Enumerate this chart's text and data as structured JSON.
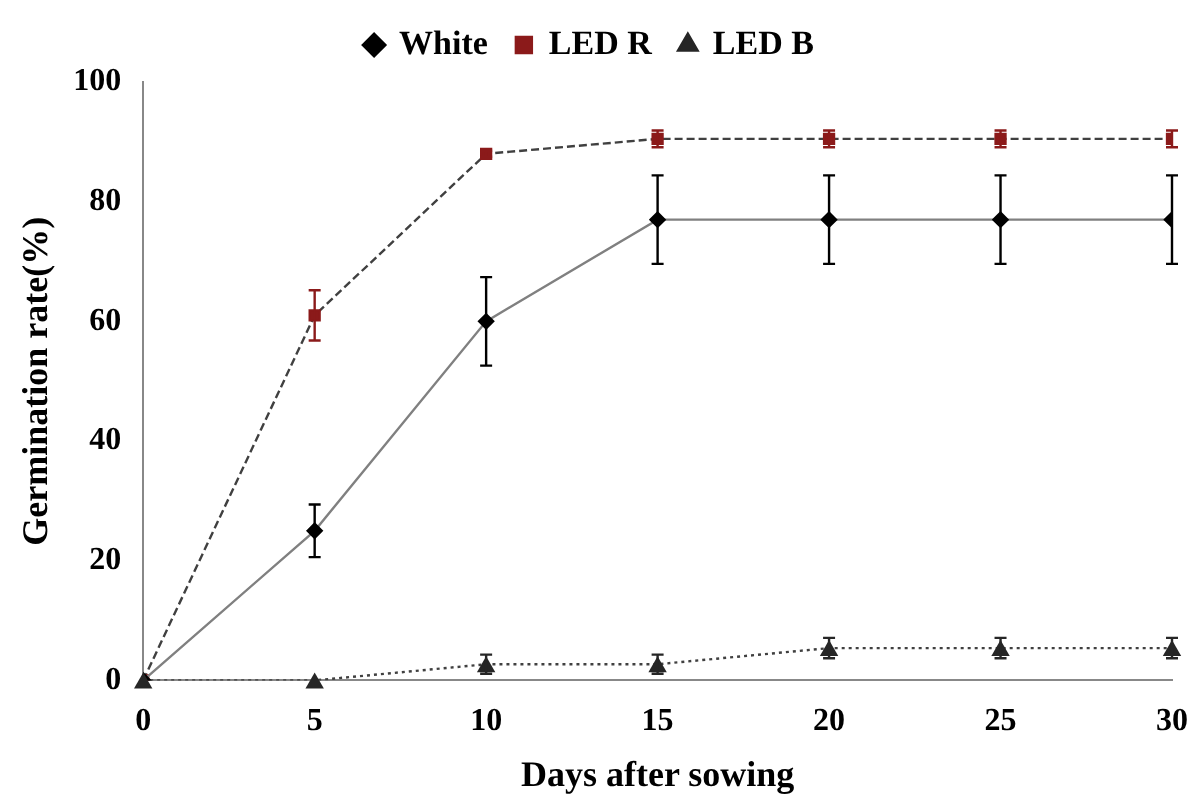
{
  "chart_data": {
    "type": "line",
    "xlabel": "Days after sowing",
    "ylabel": "Germination rate(%)",
    "x": [
      0,
      5,
      10,
      15,
      20,
      25,
      30
    ],
    "xlim": [
      0,
      30
    ],
    "xticks": [
      0,
      5,
      10,
      15,
      20,
      25,
      30
    ],
    "ylim": [
      0,
      100
    ],
    "yticks": [
      0,
      20,
      40,
      60,
      80,
      100
    ],
    "grid": false,
    "legend": "top",
    "series": [
      {
        "name": "White",
        "color": "#000000",
        "marker": "diamond",
        "line_style": "solid",
        "values": [
          0,
          25,
          60,
          77,
          77,
          77,
          77
        ],
        "errors": [
          null,
          4.4,
          7.4,
          7.4,
          7.4,
          7.4,
          7.4
        ]
      },
      {
        "name": "LED R",
        "color": "#8b1a1a",
        "marker": "square",
        "line_style": "dashed",
        "values": [
          0,
          61,
          88,
          90.5,
          90.5,
          90.5,
          90.5
        ],
        "errors": [
          null,
          4.2,
          0.5,
          1.4,
          1.4,
          1.4,
          1.4
        ]
      },
      {
        "name": "LED B",
        "color": "#262626",
        "marker": "triangle",
        "line_style": "dotted",
        "values": [
          0,
          0,
          2.7,
          2.7,
          5.4,
          5.4,
          5.4
        ],
        "errors": [
          null,
          null,
          1.6,
          1.6,
          1.7,
          1.7,
          1.7
        ]
      }
    ]
  }
}
